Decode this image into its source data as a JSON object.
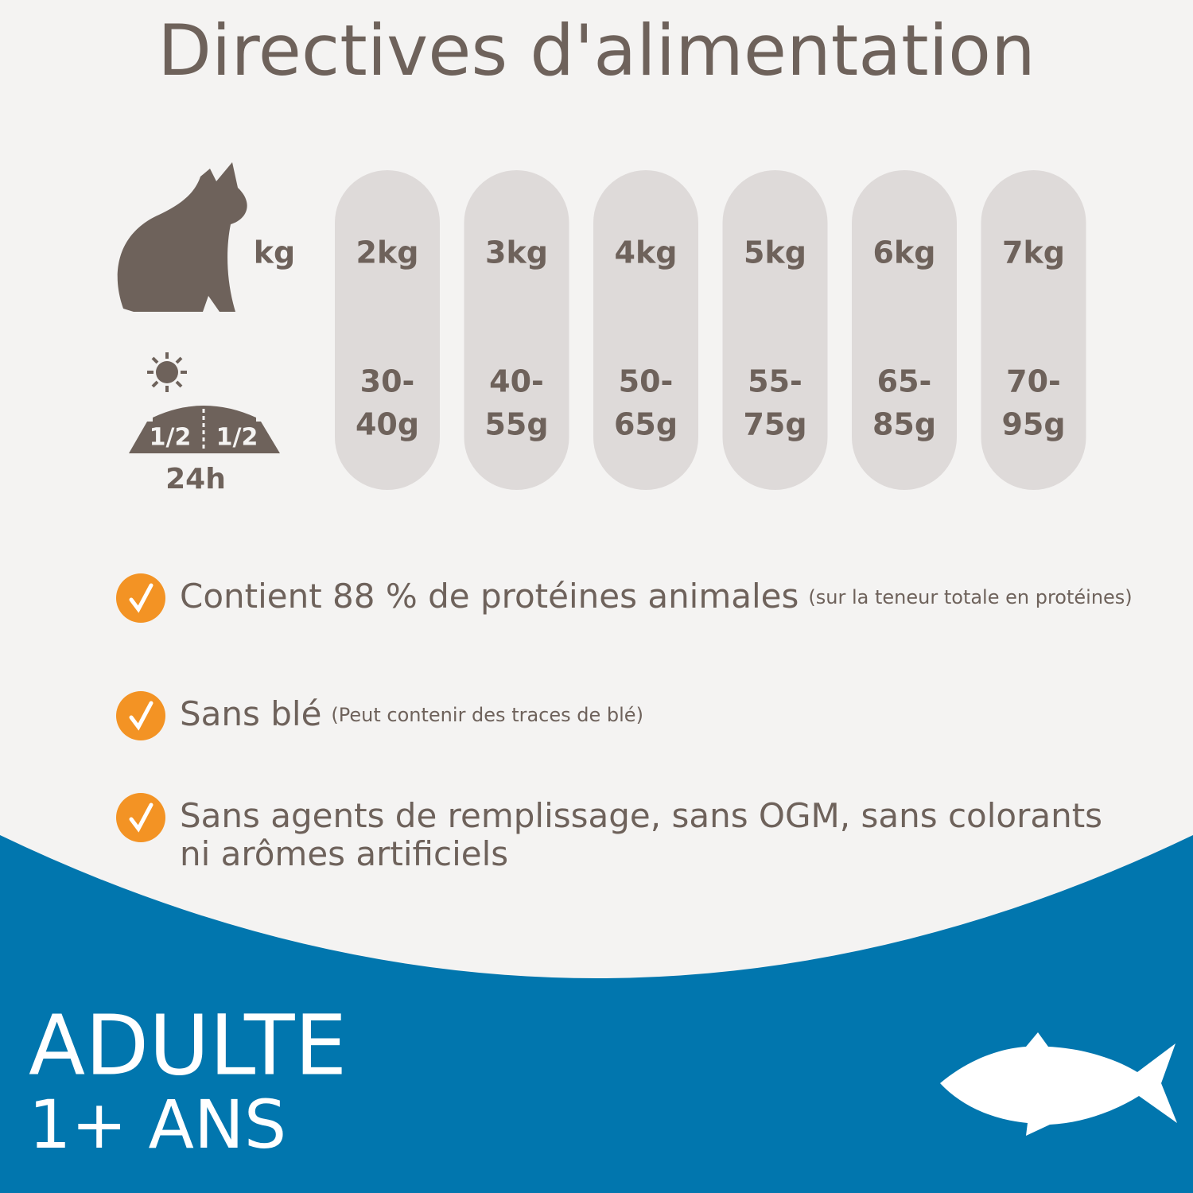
{
  "header": {
    "title": "Directives d'alimentation"
  },
  "table": {
    "weight_label": "kg",
    "portion_label": "24h",
    "bowl_labels": [
      "1/2",
      "1/2"
    ],
    "columns": [
      {
        "weight": "2kg",
        "amount": [
          "30-",
          "40g"
        ]
      },
      {
        "weight": "3kg",
        "amount": [
          "40-",
          "55g"
        ]
      },
      {
        "weight": "4kg",
        "amount": [
          "50-",
          "65g"
        ]
      },
      {
        "weight": "5kg",
        "amount": [
          "55-",
          "75g"
        ]
      },
      {
        "weight": "6kg",
        "amount": [
          "65-",
          "85g"
        ]
      },
      {
        "weight": "7kg",
        "amount": [
          "70-",
          "95g"
        ]
      }
    ]
  },
  "benefits": [
    {
      "text": "Contient 88 % de protéines animales",
      "note": "(sur la teneur totale en protéines)"
    },
    {
      "text": "Sans blé",
      "note": "(Peut contenir des traces de blé)"
    },
    {
      "text": "Sans agents de remplissage, sans OGM, sans colorants ni arômes artificiels"
    }
  ],
  "footer": {
    "stage": "ADULTE",
    "age": "1+ ANS"
  }
}
